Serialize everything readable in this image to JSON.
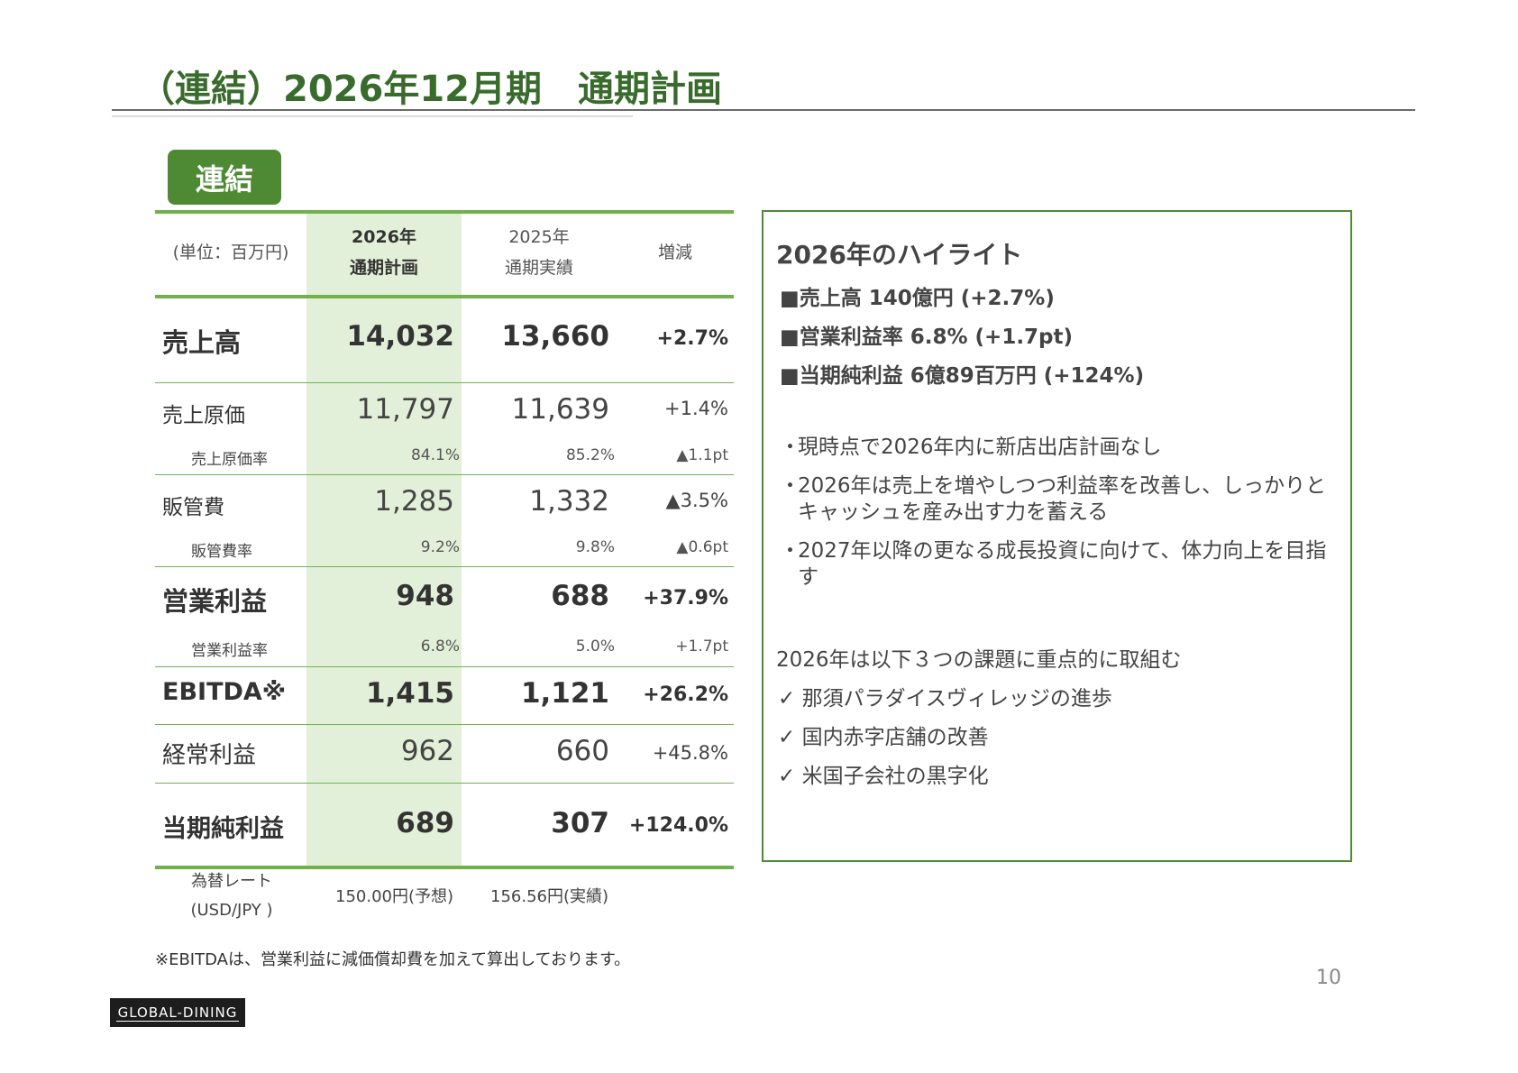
{
  "title": "（連結）2026年12月期　通期計画",
  "badge": "連結",
  "table": {
    "unit": "(単位：百万円)",
    "col1": [
      "2026年",
      "通期計画"
    ],
    "col2": [
      "2025年",
      "通期実績"
    ],
    "col3": "増減",
    "rows": [
      {
        "label": "売上高",
        "plan": "14,032",
        "actual": "13,660",
        "change": "+2.7%"
      },
      {
        "label": "売上原価",
        "plan": "11,797",
        "actual": "11,639",
        "change": "+1.4%"
      },
      {
        "label": "売上原価率",
        "plan": "84.1%",
        "actual": "85.2%",
        "change": "▲1.1pt"
      },
      {
        "label": "販管費",
        "plan": "1,285",
        "actual": "1,332",
        "change": "▲3.5%"
      },
      {
        "label": "販管費率",
        "plan": "9.2%",
        "actual": "9.8%",
        "change": "▲0.6pt"
      },
      {
        "label": "営業利益",
        "plan": "948",
        "actual": "688",
        "change": "+37.9%"
      },
      {
        "label": "営業利益率",
        "plan": "6.8%",
        "actual": "5.0%",
        "change": "+1.7pt"
      },
      {
        "label": "EBITDA※",
        "plan": "1,415",
        "actual": "1,121",
        "change": "+26.2%"
      },
      {
        "label": "経常利益",
        "plan": "962",
        "actual": "660",
        "change": "+45.8%"
      },
      {
        "label": "当期純利益",
        "plan": "689",
        "actual": "307",
        "change": "+124.0%"
      }
    ],
    "fx_label": [
      "為替レート",
      "(USD/JPY )"
    ],
    "fx_plan": "150.00円(予想)",
    "fx_actual": "156.56円(実績)"
  },
  "footnote": "※EBITDAは、営業利益に減価償却費を加えて算出しております。",
  "highlights": {
    "title": "2026年のハイライト",
    "kpis": [
      "■売上高 140億円 (+2.7%)",
      "■営業利益率 6.8% (+1.7pt)",
      "■当期純利益 6億89百万円 (+124%)"
    ],
    "bullets": [
      "現時点で2026年内に新店出店計画なし",
      "2026年は売上を増やしつつ利益率を改善し、しっかりとキャッシュを産み出す力を蓄える",
      "2027年以降の更なる成長投資に向けて、体力向上を目指す"
    ],
    "bullet_mark": "・",
    "focus_intro": "2026年は以下３つの課題に重点的に取組む",
    "checks": [
      "✓ 那須パラダイスヴィレッジの進歩",
      "✓ 国内赤字店舗の改善",
      "✓ 米国子会社の黒字化"
    ]
  },
  "page_number": "10",
  "logo_text": "GLOBAL-DINING"
}
